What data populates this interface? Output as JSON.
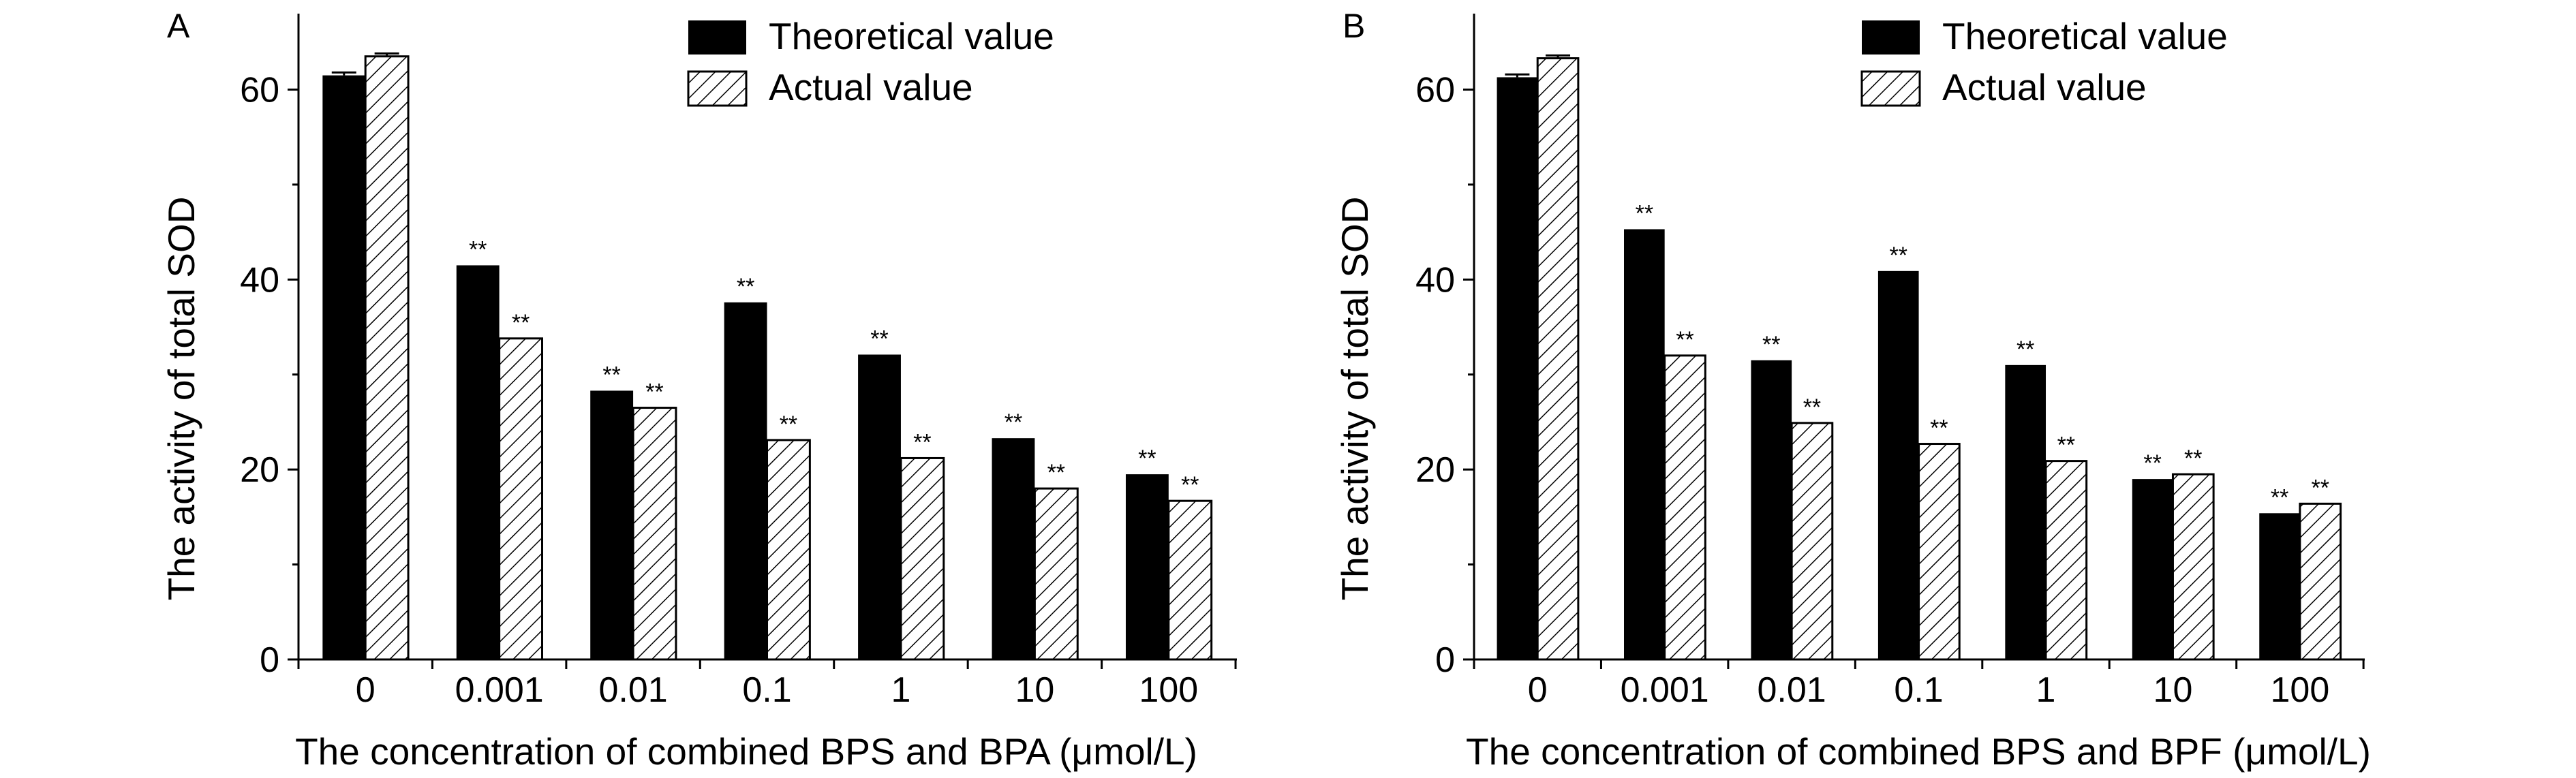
{
  "colors": {
    "bar_theoretical": "#000000",
    "bar_actual_fill": "#ffffff",
    "hatch": "#000000",
    "axis": "#000000"
  },
  "significance_mark": "**",
  "chart_data": [
    {
      "type": "bar",
      "panel_label": "A",
      "categories": [
        "0",
        "0.001",
        "0.01",
        "0.1",
        "1",
        "10",
        "100"
      ],
      "series": [
        {
          "name": "Theoretical value",
          "values": [
            61.5,
            41.5,
            28.3,
            37.6,
            32.1,
            23.3,
            19.5
          ],
          "errors": [
            0.3,
            0,
            0,
            0,
            0,
            0,
            0
          ],
          "significant": [
            false,
            true,
            true,
            true,
            true,
            true,
            true
          ]
        },
        {
          "name": "Actual value",
          "values": [
            63.5,
            33.8,
            26.5,
            23.1,
            21.2,
            18.0,
            16.7
          ],
          "errors": [
            0.3,
            0,
            0,
            0,
            0,
            0,
            0
          ],
          "significant": [
            false,
            true,
            true,
            true,
            true,
            true,
            true
          ]
        }
      ],
      "xlabel": "The concentration of combined BPS and BPA (μmol/L)",
      "ylabel": "The activity of total SOD",
      "ylim": [
        0,
        68
      ],
      "yticks": [
        0,
        20,
        40,
        60
      ],
      "legend": "top-right",
      "grid": false
    },
    {
      "type": "bar",
      "panel_label": "B",
      "categories": [
        "0",
        "0.001",
        "0.01",
        "0.1",
        "1",
        "10",
        "100"
      ],
      "series": [
        {
          "name": "Theoretical value",
          "values": [
            61.3,
            45.3,
            31.5,
            40.9,
            31.0,
            19.0,
            15.4
          ],
          "errors": [
            0.3,
            0,
            0,
            0,
            0,
            0,
            0
          ],
          "significant": [
            false,
            true,
            true,
            true,
            true,
            true,
            true
          ]
        },
        {
          "name": "Actual value",
          "values": [
            63.3,
            32.0,
            24.9,
            22.7,
            20.9,
            19.5,
            16.4
          ],
          "errors": [
            0.3,
            0,
            0,
            0,
            0,
            0,
            0
          ],
          "significant": [
            false,
            true,
            true,
            true,
            true,
            true,
            true
          ]
        }
      ],
      "xlabel": "The concentration of combined BPS and BPF (μmol/L)",
      "ylabel": "The activity of total SOD",
      "ylim": [
        0,
        68
      ],
      "yticks": [
        0,
        20,
        40,
        60
      ],
      "legend": "top-right",
      "grid": false
    }
  ]
}
